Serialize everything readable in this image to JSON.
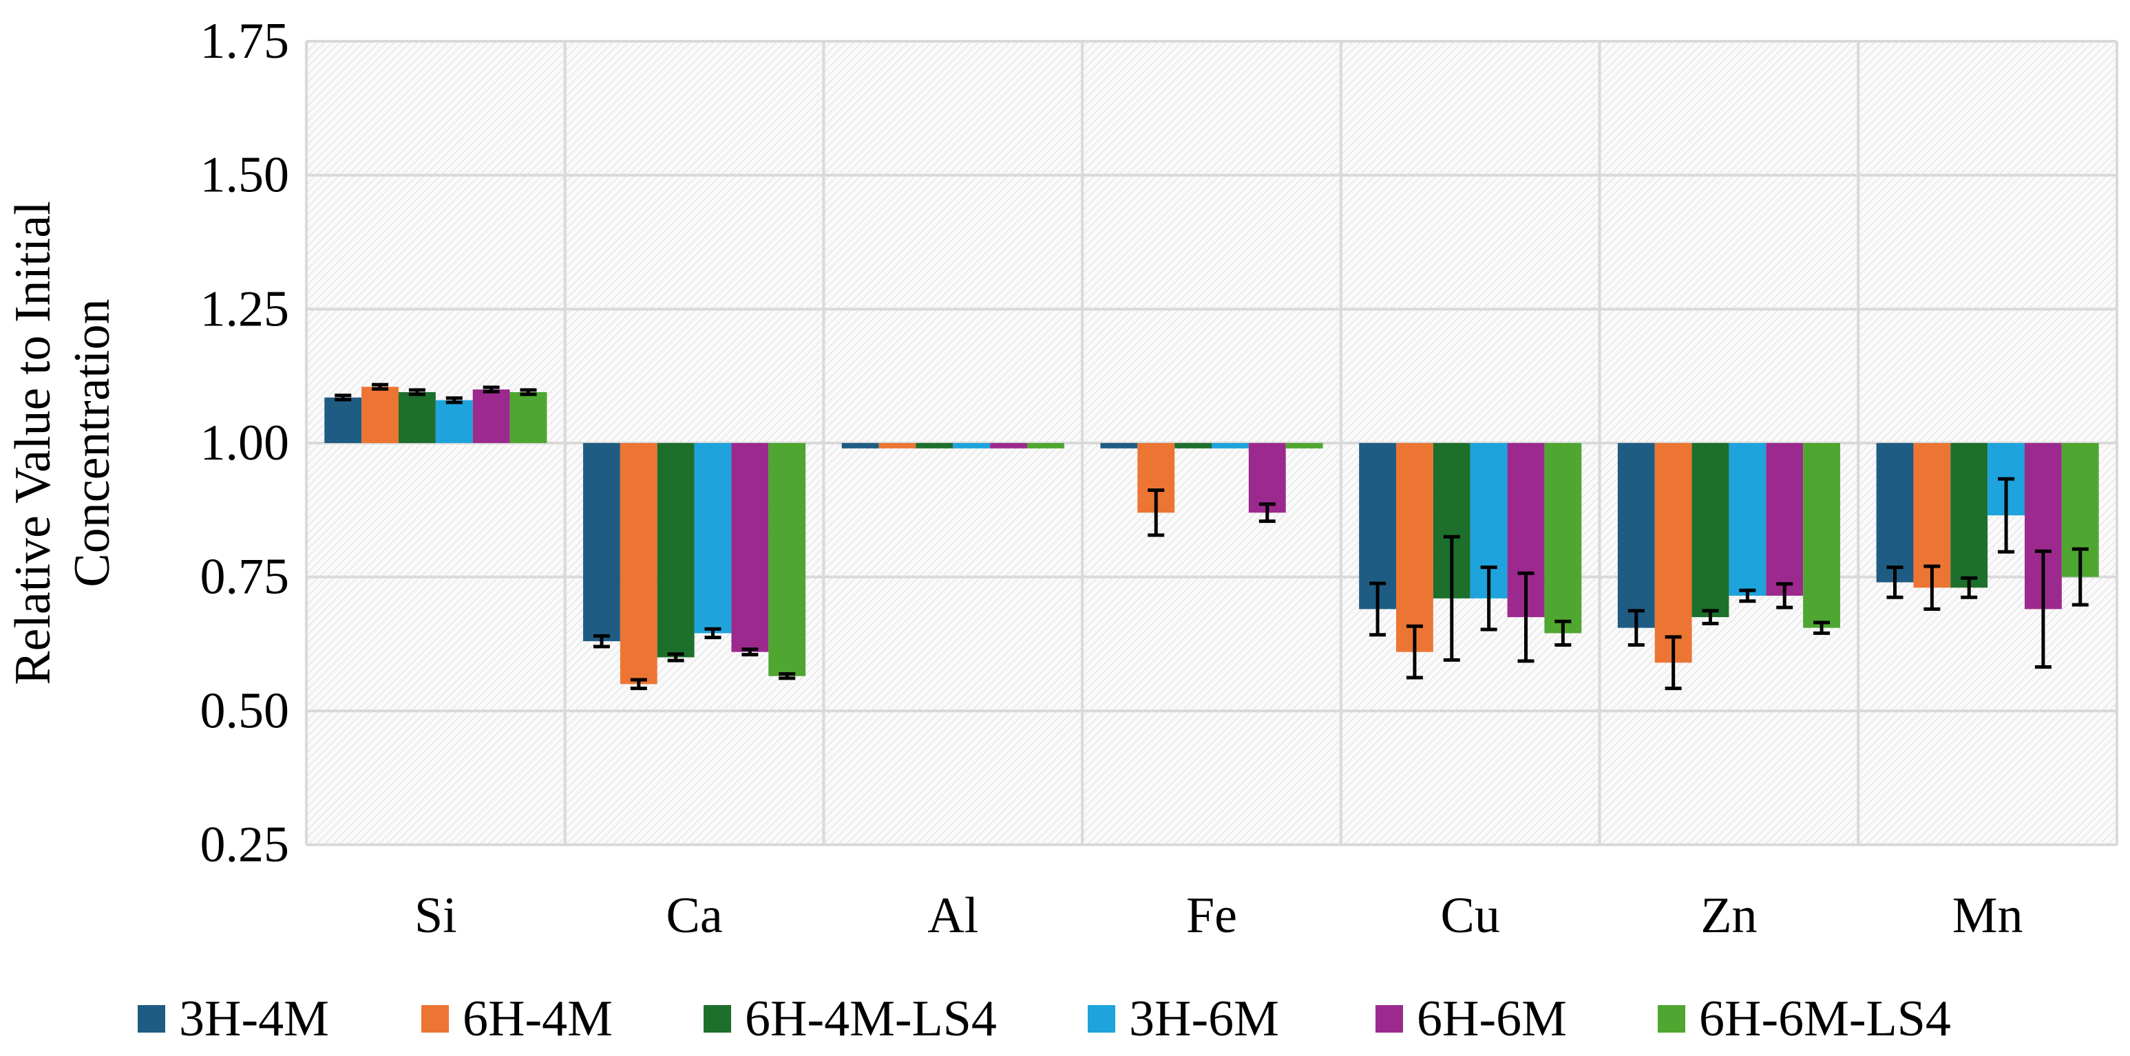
{
  "chart_data": {
    "type": "bar",
    "title": "",
    "xlabel": "",
    "ylabel_lines": [
      "Relative Value to Initial",
      "Concentration"
    ],
    "ylim": [
      0.25,
      1.75
    ],
    "baseline": 1.0,
    "yticks": [
      "0.25",
      "0.50",
      "0.75",
      "1.00",
      "1.25",
      "1.50",
      "1.75"
    ],
    "ytick_values": [
      0.25,
      0.5,
      0.75,
      1.0,
      1.25,
      1.5,
      1.75
    ],
    "grid": true,
    "legend_position": "bottom",
    "categories": [
      "Si",
      "Ca",
      "Al",
      "Fe",
      "Cu",
      "Zn",
      "Mn"
    ],
    "series": [
      {
        "name": "3H-4M",
        "color": "#1F5C83",
        "values": [
          1.085,
          0.63,
          0.99,
          0.99,
          0.69,
          0.655,
          0.74
        ],
        "errors": [
          0.004,
          0.01,
          0.0,
          0.0,
          0.048,
          0.032,
          0.028
        ]
      },
      {
        "name": "6H-4M",
        "color": "#EC7534",
        "values": [
          1.105,
          0.55,
          0.99,
          0.87,
          0.61,
          0.59,
          0.73
        ],
        "errors": [
          0.004,
          0.008,
          0.0,
          0.042,
          0.048,
          0.048,
          0.04
        ]
      },
      {
        "name": "6H-4M-LS4",
        "color": "#1D6F2C",
        "values": [
          1.095,
          0.6,
          0.99,
          0.99,
          0.71,
          0.675,
          0.73
        ],
        "errors": [
          0.004,
          0.006,
          0.0,
          0.0,
          0.115,
          0.012,
          0.018
        ]
      },
      {
        "name": "3H-6M",
        "color": "#1EA3DC",
        "values": [
          1.08,
          0.645,
          0.99,
          0.99,
          0.71,
          0.715,
          0.865
        ],
        "errors": [
          0.004,
          0.008,
          0.0,
          0.0,
          0.058,
          0.01,
          0.068
        ]
      },
      {
        "name": "6H-6M",
        "color": "#9C2A8E",
        "values": [
          1.1,
          0.61,
          0.99,
          0.87,
          0.675,
          0.715,
          0.69
        ],
        "errors": [
          0.004,
          0.005,
          0.0,
          0.016,
          0.082,
          0.022,
          0.108
        ]
      },
      {
        "name": "6H-6M-LS4",
        "color": "#4FA631",
        "values": [
          1.095,
          0.565,
          0.99,
          0.99,
          0.645,
          0.655,
          0.75
        ],
        "errors": [
          0.004,
          0.004,
          0.0,
          0.0,
          0.022,
          0.01,
          0.052
        ]
      }
    ]
  }
}
